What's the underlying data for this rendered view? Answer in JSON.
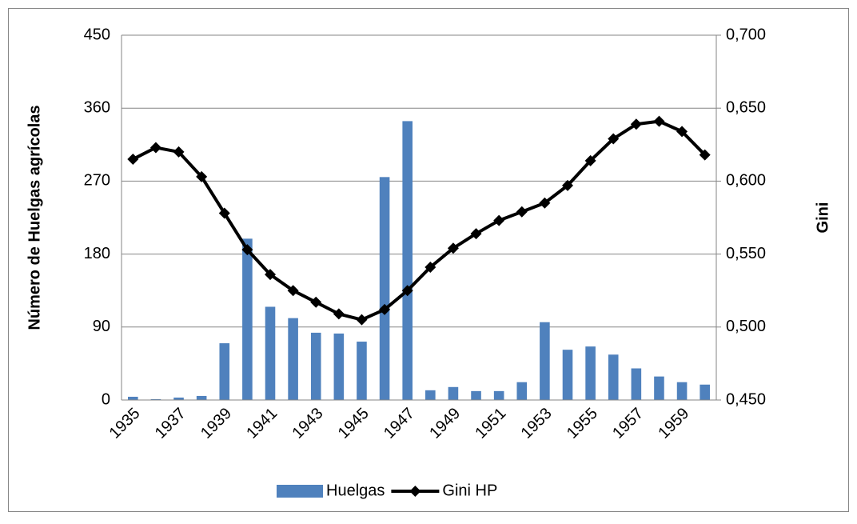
{
  "chart_data": {
    "type": "bar-line",
    "y_label": "Número de Huelgas agrícolas",
    "y2_label": "Gini",
    "categories": [
      "1935",
      null,
      "1937",
      null,
      "1939",
      null,
      "1941",
      null,
      "1943",
      null,
      "1945",
      null,
      "1947",
      null,
      "1949",
      null,
      "1951",
      null,
      "1953",
      null,
      "1955",
      null,
      "1957",
      null,
      "1959",
      null
    ],
    "series": [
      {
        "name": "Huelgas",
        "type": "bar",
        "color": "#4f81bd",
        "values": [
          4,
          1,
          3,
          5,
          70,
          199,
          115,
          101,
          83,
          82,
          72,
          275,
          344,
          12,
          16,
          11,
          11,
          22,
          96,
          62,
          66,
          56,
          39,
          29,
          22,
          19
        ]
      },
      {
        "name": "Gini HP",
        "type": "line",
        "axis": "y2",
        "color": "#000000",
        "values": [
          0.615,
          0.623,
          0.62,
          0.603,
          0.578,
          0.553,
          0.536,
          0.525,
          0.517,
          0.509,
          0.505,
          0.512,
          0.525,
          0.541,
          0.554,
          0.564,
          0.573,
          0.579,
          0.585,
          0.597,
          0.614,
          0.629,
          0.639,
          0.641,
          0.634,
          0.618
        ]
      }
    ],
    "ylim": [
      0,
      450
    ],
    "yticks": [
      0,
      90,
      180,
      270,
      360,
      450
    ],
    "y2lim": [
      0.45,
      0.7
    ],
    "y2ticks": [
      {
        "value": 0.45,
        "label": "0,450"
      },
      {
        "value": 0.5,
        "label": "0,500"
      },
      {
        "value": 0.55,
        "label": "0,550"
      },
      {
        "value": 0.6,
        "label": "0,600"
      },
      {
        "value": 0.65,
        "label": "0,650"
      },
      {
        "value": 0.7,
        "label": "0,700"
      }
    ],
    "grid": true,
    "legend": "bottom"
  }
}
